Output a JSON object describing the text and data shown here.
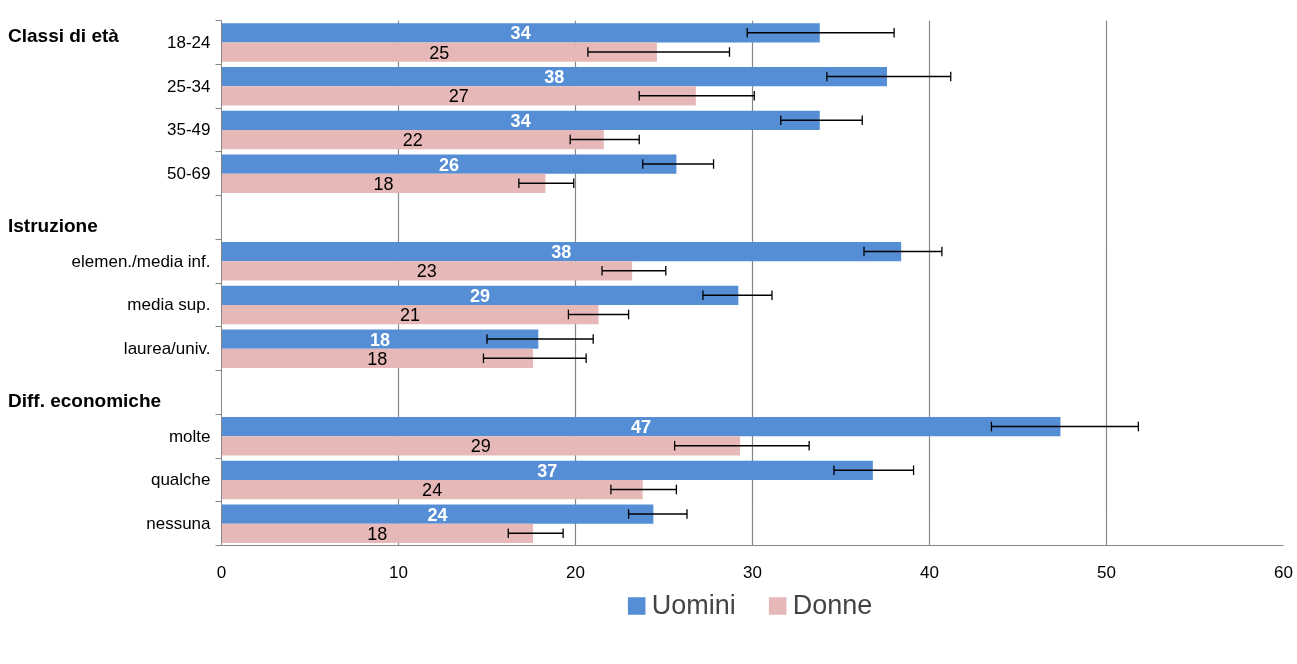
{
  "chart_data": {
    "type": "bar",
    "orientation": "horizontal",
    "categories": [
      "18-24",
      "25-34",
      "35-49",
      "50-69",
      null,
      "elemen./media inf.",
      "media sup.",
      "laurea/univ.",
      null,
      "molte",
      "qualche",
      "nessuna"
    ],
    "series": [
      {
        "name": "Uomini",
        "color": "#558ed5",
        "values": [
          33.8,
          37.6,
          33.8,
          25.7,
          null,
          38.4,
          29.2,
          17.9,
          null,
          47.4,
          36.8,
          24.4
        ],
        "value_labels": [
          "34",
          "38",
          "34",
          "26",
          null,
          "38",
          "29",
          "18",
          null,
          "47",
          "37",
          "24"
        ],
        "errors": [
          [
            29.7,
            38.0
          ],
          [
            34.2,
            41.2
          ],
          [
            31.6,
            36.2
          ],
          [
            23.8,
            27.8
          ],
          null,
          [
            36.3,
            40.7
          ],
          [
            27.2,
            31.1
          ],
          [
            15.0,
            21.0
          ],
          null,
          [
            43.5,
            51.8
          ],
          [
            34.6,
            39.1
          ],
          [
            23.0,
            26.3
          ]
        ]
      },
      {
        "name": "Donne",
        "color": "#e6b9b8",
        "values": [
          24.6,
          26.8,
          21.6,
          18.3,
          null,
          23.2,
          21.3,
          17.6,
          null,
          29.3,
          23.8,
          17.6
        ],
        "value_labels": [
          "25",
          "27",
          "22",
          "18",
          null,
          "23",
          "21",
          "18",
          null,
          "29",
          "24",
          "18"
        ],
        "errors": [
          [
            20.7,
            28.7
          ],
          [
            23.6,
            30.1
          ],
          [
            19.7,
            23.6
          ],
          [
            16.8,
            19.9
          ],
          null,
          [
            21.5,
            25.1
          ],
          [
            19.6,
            23.0
          ],
          [
            14.8,
            20.6
          ],
          null,
          [
            25.6,
            33.2
          ],
          [
            22.0,
            25.7
          ],
          [
            16.2,
            19.3
          ]
        ]
      }
    ],
    "xlim": [
      0,
      60
    ],
    "xticks": [
      0,
      10,
      20,
      30,
      40,
      50,
      60
    ],
    "grid": "x",
    "legend": "bottom",
    "annotations": [
      "Classi di età",
      "Istruzione",
      "Diff. economiche"
    ]
  }
}
